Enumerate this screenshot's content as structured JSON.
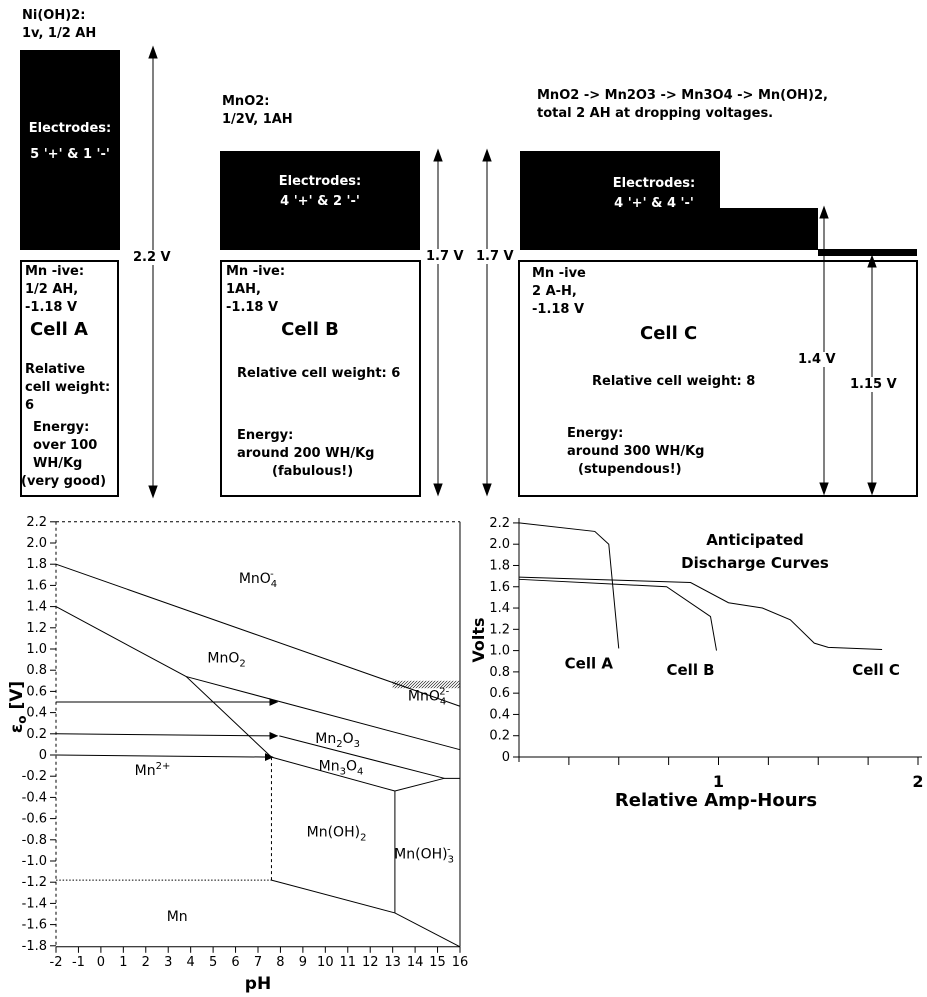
{
  "page": {
    "bg": "#ffffff",
    "ink": "#000000"
  },
  "top": {
    "label_nioh2": [
      "Ni(OH)2:",
      "1v, 1/2 AH"
    ],
    "label_mno2": [
      "MnO2:",
      "1/2V, 1AH"
    ],
    "label_mnseq": [
      "MnO2 -> Mn2O3 -> Mn3O4 -> Mn(OH)2,",
      "total 2 AH at dropping voltages."
    ],
    "box1_lines": [
      "Electrodes:",
      "5 '+' & 1 '-'"
    ],
    "box2_lines": [
      "Electrodes:",
      "4 '+' & 2 '-'"
    ],
    "box3_lines": [
      "Electrodes:",
      "4 '+' & 4 '-'"
    ],
    "arrow_a": "2.2 V",
    "arrow_b1": "1.7 V",
    "arrow_b2": "1.7 V",
    "arrow_c1": "1.4 V",
    "arrow_c2": "1.15 V"
  },
  "cells": {
    "a": {
      "neg": [
        "Mn -ive:",
        "1/2 AH,",
        "-1.18 V"
      ],
      "title": "Cell A",
      "weight": [
        "Relative",
        "cell weight:",
        "6"
      ],
      "energy": [
        "Energy:",
        "over 100",
        "WH/Kg",
        "(very good)"
      ]
    },
    "b": {
      "neg": [
        "Mn -ive:",
        "1AH,",
        "-1.18 V"
      ],
      "title": "Cell B",
      "weight": "Relative cell weight: 6",
      "energy": [
        "Energy:",
        "around 200 WH/Kg",
        "(fabulous!)"
      ]
    },
    "c": {
      "neg": [
        "Mn -ive",
        "2 A-H,",
        "-1.18 V"
      ],
      "title": "Cell C",
      "weight": "Relative cell weight: 8",
      "energy": [
        "Energy:",
        "around 300 WH/Kg",
        "(stupendous!)"
      ]
    }
  },
  "chart_data": [
    {
      "type": "line",
      "name": "pourbaix-diagram",
      "xlabel": "pH",
      "ylabel_parts": [
        [
          "ε",
          "n"
        ],
        [
          "o",
          "sub"
        ],
        [
          " [V]",
          "n"
        ]
      ],
      "xlim": [
        -2,
        16
      ],
      "ylim": [
        -1.8,
        2.2
      ],
      "grid": false,
      "xtick_labels": [
        "-2",
        "-1",
        "0",
        "1",
        "2",
        "3",
        "4",
        "5",
        "6",
        "7",
        "8",
        "9",
        "10",
        "11",
        "12",
        "13",
        "14",
        "15",
        "16"
      ],
      "ytick_labels": [
        "2.2",
        "2.0",
        "1.8",
        "1.6",
        "1.4",
        "1.2",
        "1.0",
        "0.8",
        "0.6",
        "0.4",
        "0.2",
        "0",
        "-0.2",
        "-0.4",
        "-0.6",
        "-0.8",
        "-1.0",
        "-1.2",
        "-1.4",
        "-1.6",
        "-1.8"
      ],
      "borders": {
        "top": "dashed",
        "left": "dashed",
        "right": "solid",
        "bottom": "solid"
      },
      "segments": [
        {
          "name": "mno4-lower-boundary",
          "style": "solid",
          "pts": [
            [
              -2,
              1.8
            ],
            [
              16,
              0.46
            ]
          ]
        },
        {
          "name": "mno2-left-boundary",
          "style": "solid",
          "pts": [
            [
              -2,
              1.4
            ],
            [
              3.8,
              0.74
            ],
            [
              7.6,
              -0.02
            ]
          ]
        },
        {
          "name": "mno2-mn2o3-boundary",
          "style": "solid",
          "pts": [
            [
              3.8,
              0.74
            ],
            [
              16,
              0.05
            ]
          ]
        },
        {
          "name": "mn2o3-mn3o4-boundary",
          "style": "solid",
          "pts": [
            [
              7.95,
              0.18
            ],
            [
              15.3,
              -0.22
            ]
          ]
        },
        {
          "name": "mn3o4-mnoh2-boundary",
          "style": "solid",
          "pts": [
            [
              7.6,
              -0.02
            ],
            [
              13.1,
              -0.34
            ]
          ]
        },
        {
          "name": "mnoh3-upper-boundary",
          "style": "solid",
          "pts": [
            [
              13.1,
              -0.34
            ],
            [
              15.3,
              -0.22
            ],
            [
              16,
              -0.22
            ]
          ]
        },
        {
          "name": "mnoh2-mnoh3-divider",
          "style": "solid",
          "pts": [
            [
              13.1,
              -0.34
            ],
            [
              13.1,
              -1.49
            ]
          ]
        },
        {
          "name": "mn2plus-mnoh2-divider",
          "style": "dashed",
          "pts": [
            [
              7.6,
              -0.02
            ],
            [
              7.6,
              -1.18
            ]
          ]
        },
        {
          "name": "mn-upper-boundary-acid",
          "style": "dotted",
          "pts": [
            [
              -2,
              -1.18
            ],
            [
              7.6,
              -1.18
            ]
          ]
        },
        {
          "name": "mn-upper-boundary-alkaline",
          "style": "solid",
          "pts": [
            [
              7.6,
              -1.18
            ],
            [
              13.1,
              -1.49
            ],
            [
              16,
              -1.81
            ]
          ]
        }
      ],
      "hatch_band": {
        "name": "mno4-2minus-band",
        "x": [
          13.0,
          16.0
        ],
        "y": [
          0.63,
          0.7
        ]
      },
      "arrows": [
        {
          "name": "arrow-0p5v",
          "pts": [
            [
              -2,
              0.5
            ],
            [
              7.95,
              0.5
            ]
          ]
        },
        {
          "name": "arrow-0p2v",
          "pts": [
            [
              -2,
              0.2
            ],
            [
              7.95,
              0.18
            ]
          ]
        },
        {
          "name": "arrow-0v",
          "pts": [
            [
              -2,
              0.0
            ],
            [
              7.75,
              -0.02
            ]
          ]
        }
      ],
      "regions": [
        {
          "formula": "MnO4^-",
          "x": 7.0,
          "y": 1.67
        },
        {
          "formula": "MnO2",
          "x": 5.6,
          "y": 0.92
        },
        {
          "formula": "MnO4^2-",
          "x": 14.6,
          "y": 0.56
        },
        {
          "formula": "Mn2O3",
          "x": 10.55,
          "y": 0.16
        },
        {
          "formula": "Mn3O4",
          "x": 10.7,
          "y": -0.1
        },
        {
          "formula": "Mn^2+",
          "x": 2.3,
          "y": -0.14
        },
        {
          "formula": "Mn(OH)2",
          "x": 10.5,
          "y": -0.72
        },
        {
          "formula": "Mn(OH)3^-",
          "x": 14.4,
          "y": -0.93
        },
        {
          "formula": "Mn",
          "x": 3.4,
          "y": -1.52
        }
      ]
    },
    {
      "type": "line",
      "name": "discharge-chart",
      "title_lines": [
        "Anticipated",
        "Discharge Curves"
      ],
      "xlabel": "Relative Amp-Hours",
      "ylabel": "Volts",
      "xlim": [
        0,
        2
      ],
      "ylim": [
        0,
        2.2
      ],
      "grid": false,
      "legend_position": "inline-labels",
      "ytick_labels": [
        "0",
        "0.2",
        "0.4",
        "0.6",
        "0.8",
        "1.0",
        "1.2",
        "1.4",
        "1.6",
        "1.8",
        "2.0",
        "2.2"
      ],
      "xticks_major": [
        {
          "v": 1,
          "label": "1"
        },
        {
          "v": 2,
          "label": "2"
        }
      ],
      "xticks_minor": [
        0.25,
        0.5,
        0.75,
        1.25,
        1.5,
        1.75
      ],
      "series": [
        {
          "name": "Cell A",
          "points": [
            [
              0,
              2.2
            ],
            [
              0.38,
              2.12
            ],
            [
              0.45,
              2.0
            ],
            [
              0.5,
              1.02
            ]
          ],
          "label_x": 0.35,
          "label_y": 0.83
        },
        {
          "name": "Cell B",
          "points": [
            [
              0,
              1.67
            ],
            [
              0.74,
              1.6
            ],
            [
              0.96,
              1.32
            ],
            [
              0.99,
              1.0
            ]
          ],
          "label_x": 0.86,
          "label_y": 0.77
        },
        {
          "name": "Cell C",
          "points": [
            [
              0,
              1.69
            ],
            [
              0.86,
              1.64
            ],
            [
              1.05,
              1.45
            ],
            [
              1.22,
              1.4
            ],
            [
              1.36,
              1.29
            ],
            [
              1.48,
              1.07
            ],
            [
              1.55,
              1.03
            ],
            [
              1.82,
              1.01
            ]
          ],
          "label_x": 1.79,
          "label_y": 0.77
        }
      ]
    }
  ]
}
